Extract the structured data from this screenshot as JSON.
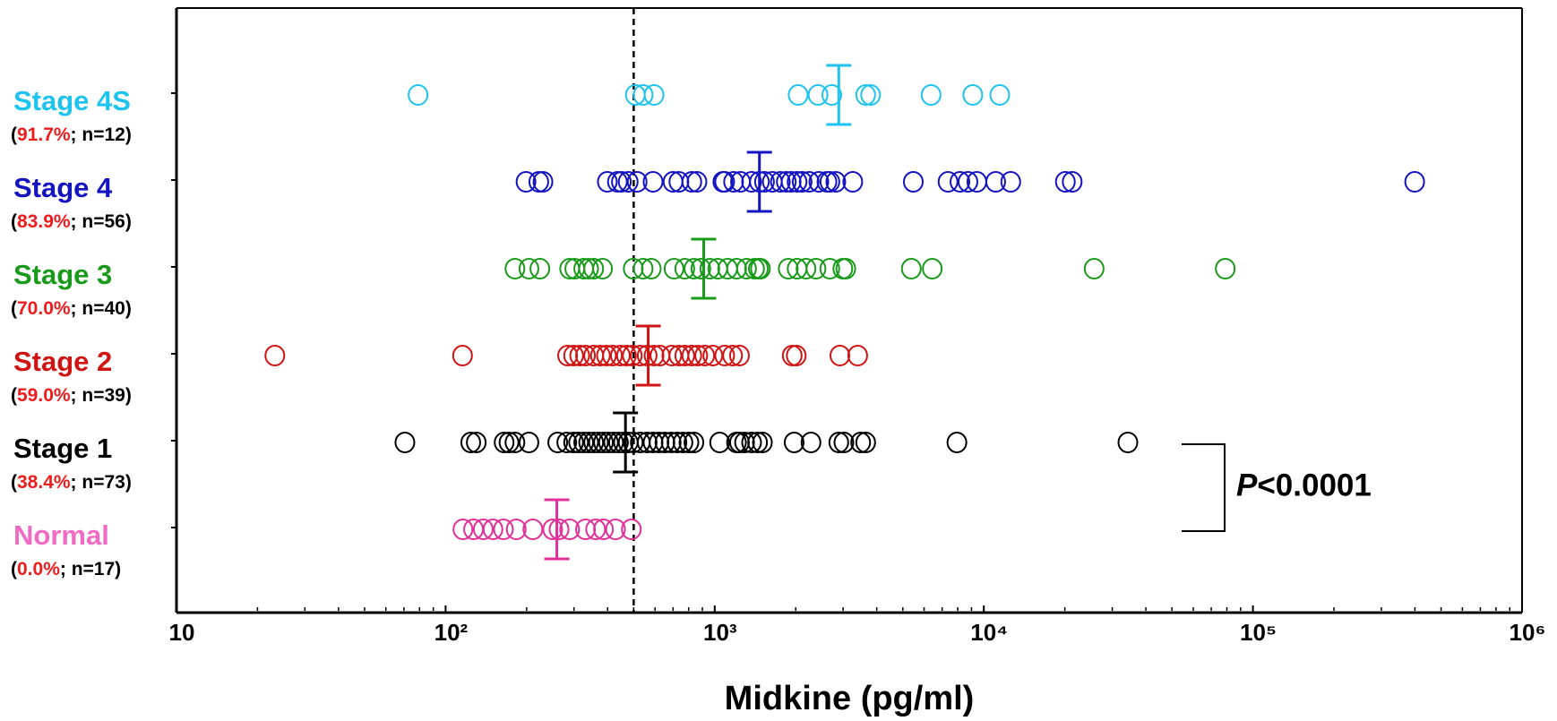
{
  "chart_data": {
    "type": "dotplot",
    "x_label": "Midkine (pg/ml)",
    "xlim": [
      10,
      1000000
    ],
    "xscale": "log",
    "xticks": [
      10,
      {
        "value": 100,
        "label": "10²"
      },
      {
        "value": 1000,
        "label": "10³"
      },
      {
        "value": 10000,
        "label": "10⁴"
      },
      {
        "value": 100000,
        "label": "10⁵"
      },
      {
        "value": 1000000,
        "label": "10⁶"
      }
    ],
    "reference_line": 500,
    "annotation": [
      "P",
      "<0.0001"
    ],
    "series": [
      {
        "name": "Stage 4S",
        "sublabel": [
          "(",
          "91.7%",
          "; n=12)"
        ],
        "color": "#1ec3ef",
        "mean": 2891,
        "values": [
          79,
          507,
          542,
          595,
          2042,
          2421,
          2723,
          3639,
          3795,
          6368,
          9100,
          11460
        ]
      },
      {
        "name": "Stage 4",
        "sublabel": [
          "(",
          "83.9%",
          "; n=56)"
        ],
        "color": "#1414c0",
        "mean": 1466,
        "values": [
          199,
          222,
          230,
          399,
          435,
          450,
          477,
          515,
          590,
          700,
          736,
          822,
          859,
          1072,
          1089,
          1175,
          1247,
          1371,
          1466,
          1531,
          1637,
          1754,
          1845,
          1923,
          2023,
          2113,
          2244,
          2438,
          2612,
          2679,
          2818,
          3258,
          5470,
          7362,
          8150,
          8730,
          9420,
          11070,
          12590,
          20090,
          21300,
          399000
        ]
      },
      {
        "name": "Stage 3",
        "sublabel": [
          "(",
          "70.0%",
          "; n=40)"
        ],
        "color": "#1a9a1a",
        "mean": 910,
        "values": [
          181,
          204,
          224,
          289,
          302,
          326,
          340,
          355,
          383,
          498,
          542,
          581,
          706,
          774,
          837,
          888,
          959,
          1026,
          1117,
          1206,
          1313,
          1406,
          1453,
          1479,
          1876,
          2024,
          2184,
          2379,
          2677,
          2992,
          3069,
          5378,
          6432,
          25700,
          78900
        ]
      },
      {
        "name": "Stage 2",
        "sublabel": [
          "(",
          "59.0%",
          "; n=39)"
        ],
        "color": "#d01414",
        "mean": 566,
        "values": [
          23.2,
          115.6,
          284,
          299,
          315,
          331,
          355,
          376,
          396,
          417,
          446,
          470,
          494,
          529,
          561,
          595,
          626,
          693,
          736,
          774,
          822,
          865,
          918,
          984,
          1089,
          1165,
          1236,
          1941,
          2009,
          2918,
          3399
        ]
      },
      {
        "name": "Stage 1",
        "sublabel": [
          "(",
          "38.4%",
          "; n=73)"
        ],
        "color": "#000000",
        "mean": 466,
        "values": [
          70.6,
          124,
          130,
          165,
          172,
          181,
          204,
          261,
          282,
          299,
          312,
          326,
          340,
          355,
          370,
          386,
          403,
          421,
          439,
          458,
          477,
          498,
          529,
          561,
          590,
          621,
          653,
          689,
          724,
          762,
          802,
          837,
          1043,
          1205,
          1236,
          1291,
          1371,
          1443,
          1504,
          1973,
          2279,
          2891,
          3020,
          3486,
          3639,
          7943,
          34300
        ]
      },
      {
        "name": "Normal",
        "sublabel": [
          "(",
          "0.0%",
          "; n=17)"
        ],
        "color": "#f06cc4",
        "marker_color": "#e0309a",
        "mean": 259,
        "values": [
          116,
          127,
          138,
          150,
          164,
          183,
          211,
          250,
          264,
          289,
          331,
          361,
          386,
          428,
          490
        ]
      }
    ],
    "sublabel_colors": [
      "#000000",
      "#ee1c1c",
      "#000000"
    ]
  }
}
